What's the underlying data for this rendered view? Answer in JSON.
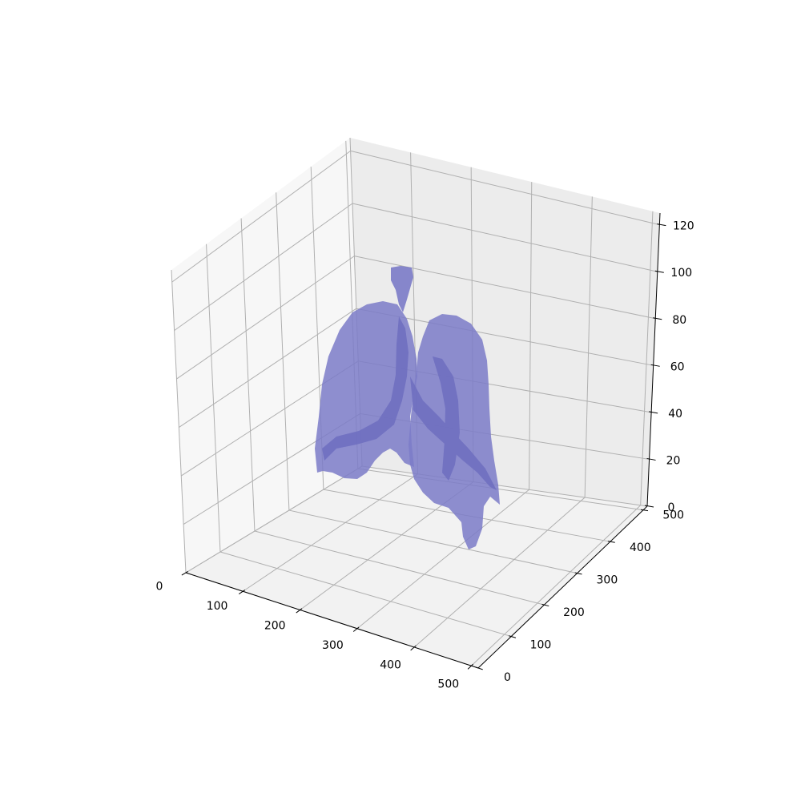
{
  "colors": {
    "surface_fill": "#7b7bc8",
    "surface_shade": "#6f6fc0",
    "pane_left": "#f7f7f7",
    "pane_floor": "#f2f2f2",
    "pane_back": "#ececec",
    "grid": "#b0b0b0"
  },
  "chart_data": {
    "type": "surface",
    "title": "",
    "xlabel": "",
    "ylabel": "",
    "zlabel": "",
    "grid": true,
    "xlim": [
      0,
      512
    ],
    "ylim": [
      0,
      512
    ],
    "zlim": [
      0,
      125
    ],
    "x_ticks": [
      0,
      100,
      200,
      300,
      400,
      500
    ],
    "y_ticks": [
      0,
      100,
      200,
      300,
      400,
      500
    ],
    "z_ticks": [
      0,
      20,
      40,
      60,
      80,
      100,
      120
    ],
    "x_tick_labels": [
      "0",
      "100",
      "200",
      "300",
      "400",
      "500"
    ],
    "y_tick_labels": [
      "0",
      "100",
      "200",
      "300",
      "400",
      "500"
    ],
    "z_tick_labels": [
      "0",
      "20",
      "40",
      "60",
      "80",
      "100",
      "120"
    ],
    "series": [
      {
        "values": []
      }
    ]
  }
}
